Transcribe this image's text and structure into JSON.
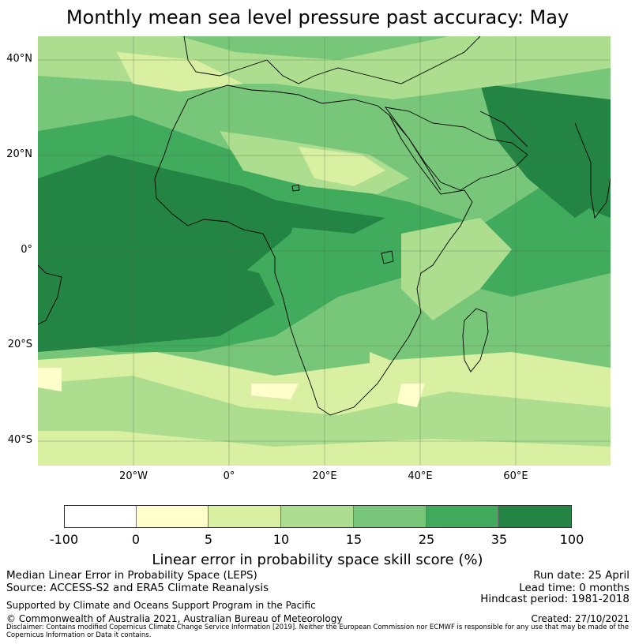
{
  "title": "Monthly mean sea level pressure past accuracy: May",
  "map": {
    "lat_labels": [
      "40°N",
      "20°N",
      "0°",
      "20°S",
      "40°S"
    ],
    "lon_labels": [
      "20°W",
      "0°",
      "20°E",
      "40°E",
      "60°E"
    ]
  },
  "colorbar": {
    "ticks": [
      "-100",
      "0",
      "5",
      "10",
      "15",
      "25",
      "35",
      "100"
    ],
    "colors": [
      "#ffffff",
      "#ffffcc",
      "#d9f0a3",
      "#addd8e",
      "#78c679",
      "#41ab5d",
      "#238443"
    ],
    "label": "Linear error in probability space skill score (%)"
  },
  "footer": {
    "line1": "Median Linear Error in Probability Space (LEPS)",
    "line2": "Source: ACCESS-S2 and ERA5 Climate Reanalysis",
    "support": "Supported by Climate and Oceans Support Program in the Pacific",
    "copyright": "© Commonwealth of Australia 2021, Australian Bureau of Meteorology",
    "run_date": "Run date: 25 April",
    "lead_time": "Lead time: 0 months",
    "hindcast": "Hindcast period: 1981-2018",
    "created": "Created: 27/10/2021",
    "disclaimer": "Disclaimer: Contains modified Copernicus Climate Change Service Information [2019]. Neither the European Commission nor ECMWF is responsible for any use that may be made of the Copernicus Information or Data it contains."
  }
}
